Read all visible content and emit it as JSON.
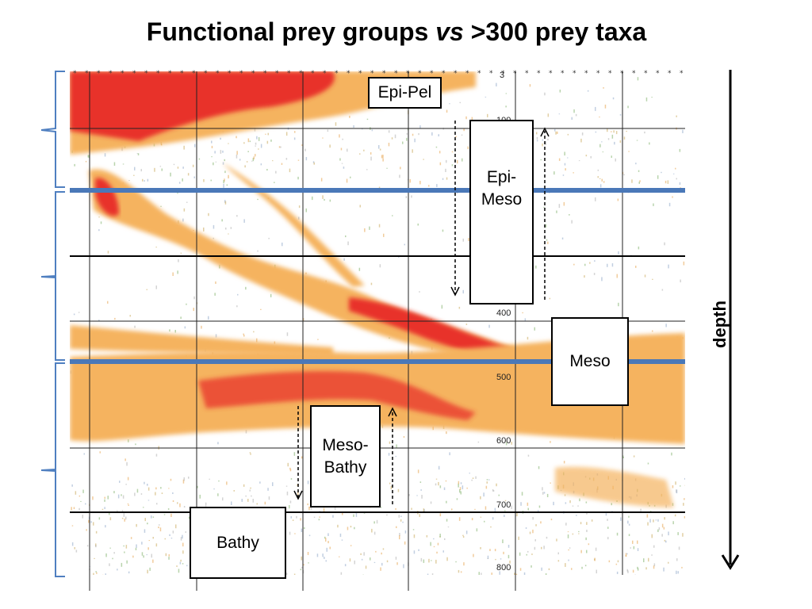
{
  "title": {
    "prefix": "Functional prey groups ",
    "italic": "vs",
    "suffix": " >300 prey taxa"
  },
  "boxes": {
    "epi_pel": "Epi-Pel",
    "epi_meso_line1": "Epi-",
    "epi_meso_line2": "Meso",
    "meso": "Meso",
    "meso_bathy_line1": "Meso-",
    "meso_bathy_line2": "Bathy",
    "bathy": "Bathy"
  },
  "depth_axis": {
    "label": "depth",
    "ticks": [
      "3",
      "100",
      "400",
      "500",
      "600",
      "700",
      "800"
    ]
  },
  "colors": {
    "band_orange": "#f5b35f",
    "band_red": "#e8332a",
    "divider_blue": "#4a78b8",
    "bracket_blue": "#4f7fc0"
  }
}
